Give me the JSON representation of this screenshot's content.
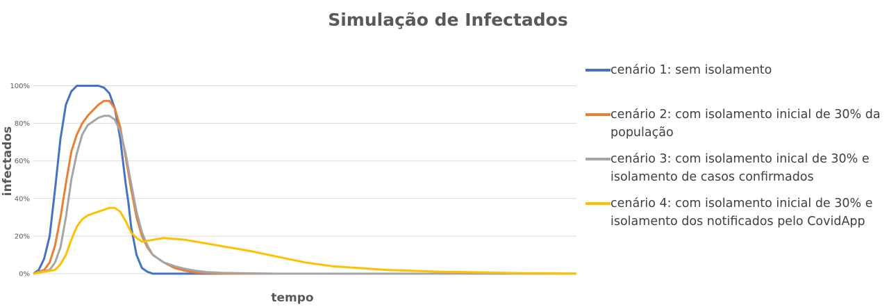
{
  "chart_data": {
    "type": "line",
    "title": "Simulação de Infectados",
    "xlabel": "tempo",
    "ylabel": "infectados",
    "ylim": [
      0,
      1.05
    ],
    "xlim": [
      0,
      100
    ],
    "yticks": [
      0,
      0.2,
      0.4,
      0.6,
      0.8,
      1.0
    ],
    "ytick_labels": [
      "0%",
      "20%",
      "40%",
      "60%",
      "80%",
      "100%"
    ],
    "grid": true,
    "legend_position": "right",
    "series": [
      {
        "name": "cenário 1: sem isolamento",
        "color": "#4472C4",
        "x": [
          0,
          1,
          2,
          3,
          4,
          5,
          6,
          7,
          8,
          9,
          10,
          11,
          12,
          13,
          14,
          15,
          16,
          17,
          17.5,
          18,
          19,
          20,
          21,
          22,
          25,
          30,
          100
        ],
        "y": [
          0,
          0.02,
          0.08,
          0.2,
          0.45,
          0.72,
          0.9,
          0.97,
          1.0,
          1.0,
          1.0,
          1.0,
          1.0,
          0.99,
          0.96,
          0.88,
          0.72,
          0.48,
          0.38,
          0.25,
          0.1,
          0.03,
          0.01,
          0.0,
          0.0,
          0.0,
          0.0
        ]
      },
      {
        "name": "cenário 2: com isolamento inicial de 30% da população",
        "color": "#ED7D31",
        "x": [
          0,
          2,
          3,
          4,
          5,
          6,
          7,
          8,
          9,
          10,
          11,
          12,
          13,
          14,
          15,
          16,
          17,
          18,
          19,
          20,
          21,
          22,
          24,
          26,
          28,
          30,
          35,
          40,
          100
        ],
        "y": [
          0,
          0.02,
          0.06,
          0.15,
          0.3,
          0.48,
          0.65,
          0.74,
          0.8,
          0.84,
          0.87,
          0.9,
          0.92,
          0.92,
          0.88,
          0.78,
          0.62,
          0.45,
          0.3,
          0.2,
          0.14,
          0.1,
          0.06,
          0.03,
          0.015,
          0.005,
          0.0,
          0.0,
          0.0
        ]
      },
      {
        "name": "cenário 3: com isolamento inical de 30% e isolamento de casos confirmados",
        "color": "#A5A5A5",
        "x": [
          0,
          3,
          4,
          5,
          6,
          7,
          8,
          9,
          10,
          11,
          12,
          13,
          14,
          15,
          16,
          17,
          18,
          19,
          20,
          21,
          22,
          24,
          26,
          28,
          30,
          32,
          35,
          40,
          45,
          100
        ],
        "y": [
          0,
          0.02,
          0.06,
          0.14,
          0.3,
          0.5,
          0.64,
          0.74,
          0.79,
          0.81,
          0.83,
          0.84,
          0.84,
          0.82,
          0.76,
          0.64,
          0.48,
          0.33,
          0.22,
          0.15,
          0.1,
          0.06,
          0.04,
          0.025,
          0.015,
          0.008,
          0.004,
          0.002,
          0.0,
          0.0
        ]
      },
      {
        "name": "cenário 4: com isolamento inicial de 30% e isolamento dos notificados pelo CovidApp",
        "color": "#FFC000",
        "x": [
          0,
          4,
          5,
          6,
          7,
          8,
          9,
          10,
          11,
          12,
          13,
          14,
          15,
          16,
          17,
          18,
          19,
          20,
          22,
          24,
          28,
          32,
          36,
          40,
          45,
          50,
          55,
          60,
          65,
          70,
          75,
          80,
          85,
          90,
          95,
          100
        ],
        "y": [
          0,
          0.02,
          0.05,
          0.1,
          0.18,
          0.25,
          0.29,
          0.31,
          0.32,
          0.33,
          0.34,
          0.35,
          0.35,
          0.33,
          0.28,
          0.22,
          0.19,
          0.17,
          0.18,
          0.19,
          0.18,
          0.16,
          0.14,
          0.12,
          0.09,
          0.06,
          0.04,
          0.03,
          0.02,
          0.015,
          0.01,
          0.008,
          0.005,
          0.003,
          0.002,
          0.001
        ]
      }
    ]
  }
}
